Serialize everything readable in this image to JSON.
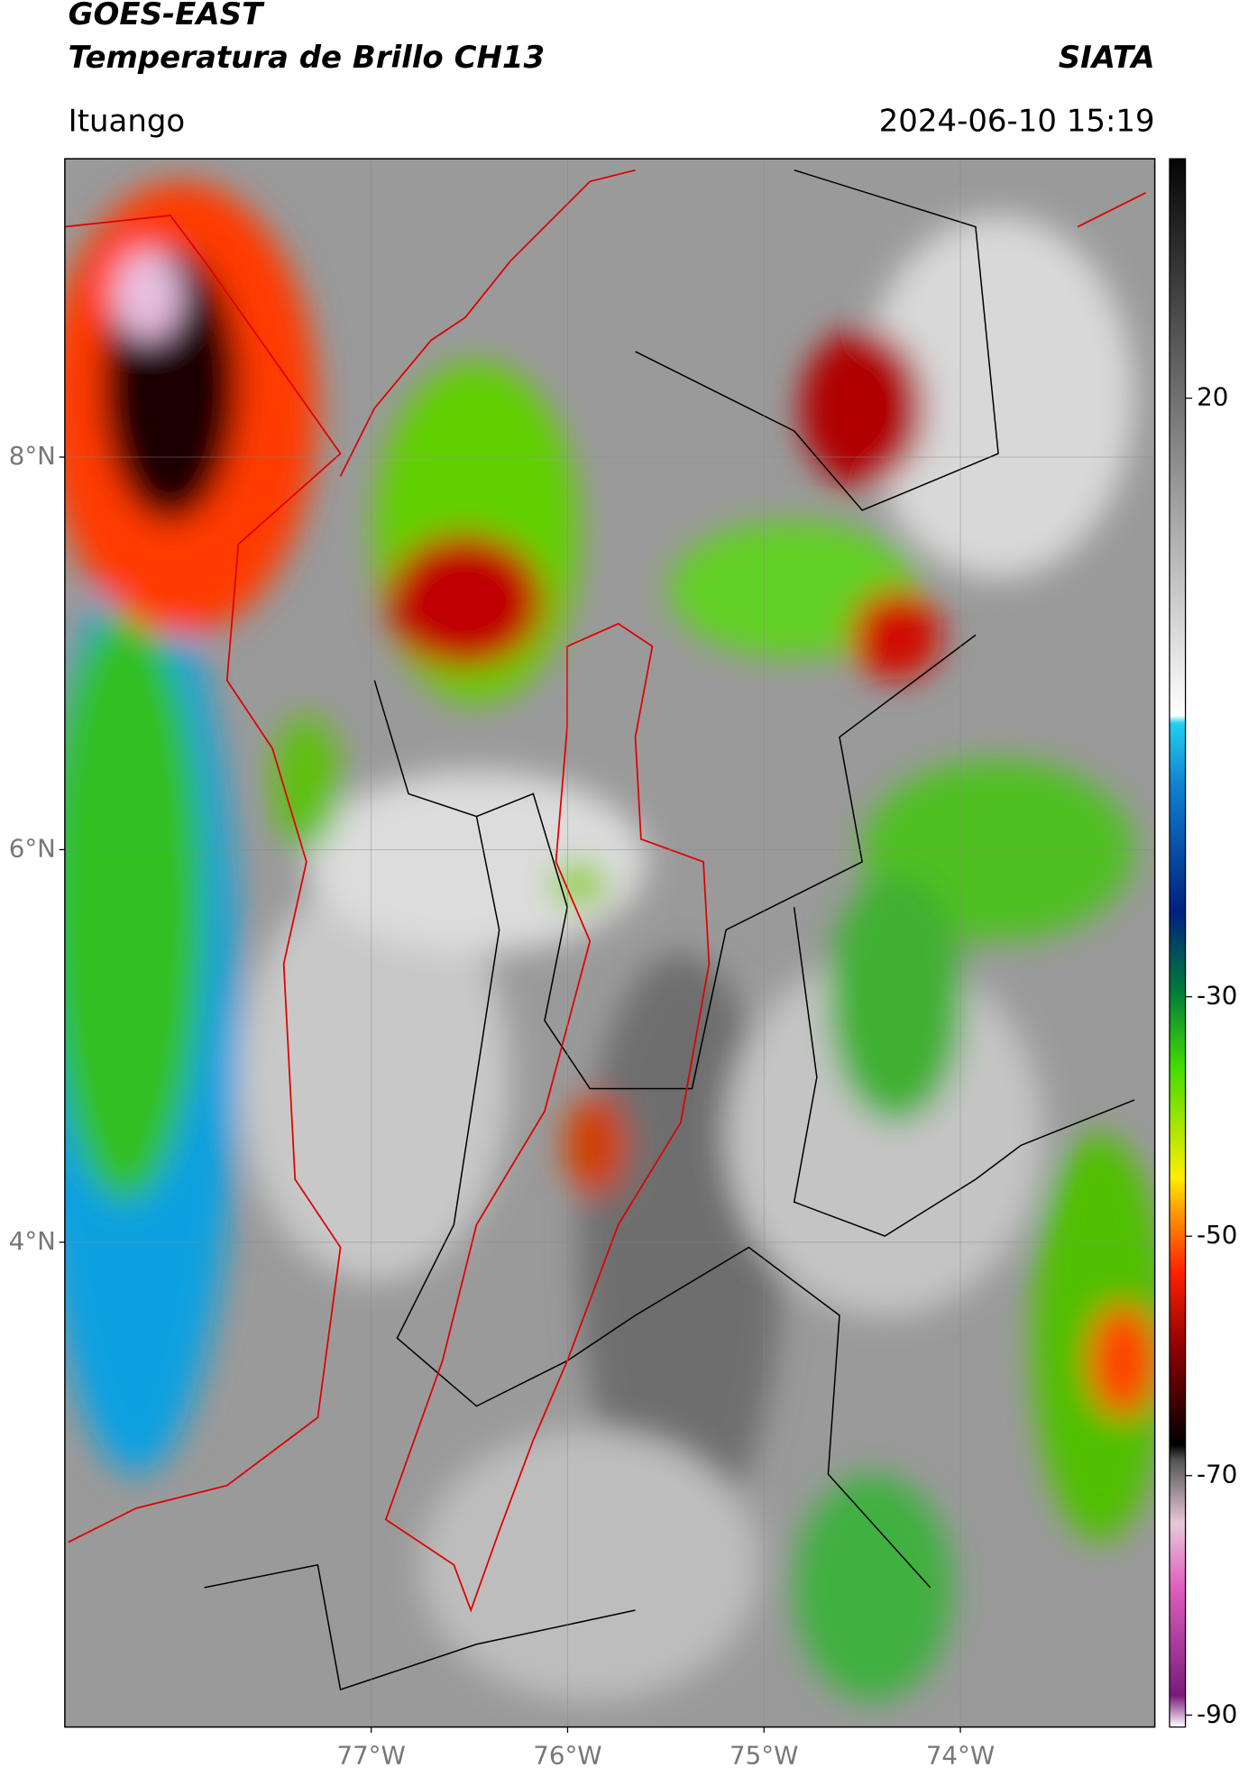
{
  "header": {
    "title": "GOES-EAST",
    "subtitle": "Temperatura de Brillo CH13",
    "brand": "SIATA",
    "region": "Ituango",
    "timestamp": "2024-06-10 15:19"
  },
  "map": {
    "xlim": [
      -78.56,
      -73.01
    ],
    "ylim": [
      1.53,
      9.52
    ],
    "xticks": [
      {
        "value": -77,
        "label": "77°W"
      },
      {
        "value": -76,
        "label": "76°W"
      },
      {
        "value": -75,
        "label": "75°W"
      },
      {
        "value": -74,
        "label": "74°W"
      }
    ],
    "yticks": [
      {
        "value": 8,
        "label": "8°N"
      },
      {
        "value": 6,
        "label": "6°N"
      },
      {
        "value": 4,
        "label": "4°N"
      }
    ],
    "grid": true
  },
  "colorbar": {
    "lim": [
      -91,
      40
    ],
    "ticks": [
      20,
      -30,
      -50,
      -70,
      -90
    ]
  }
}
